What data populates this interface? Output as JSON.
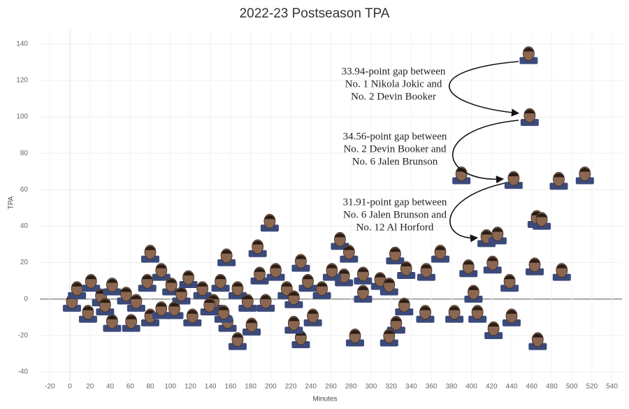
{
  "chart_data": {
    "type": "scatter",
    "title": "2022-23 Postseason TPA",
    "x_label": "Minutes",
    "y_label": "TPA",
    "color": "#8b6650",
    "grid": true,
    "xlim": [
      -30,
      550
    ],
    "ylim": [
      -45,
      148
    ],
    "xticks": [
      -20,
      0,
      20,
      40,
      60,
      80,
      100,
      120,
      140,
      160,
      180,
      200,
      220,
      240,
      260,
      280,
      300,
      320,
      340,
      360,
      380,
      400,
      420,
      440,
      460,
      480,
      500,
      520,
      540
    ],
    "yticks": [
      -40,
      -20,
      0,
      20,
      40,
      60,
      80,
      100,
      120,
      140
    ],
    "x": [
      457,
      458,
      442,
      415,
      390,
      487,
      513,
      465,
      470,
      426,
      463,
      490,
      421,
      438,
      397,
      402,
      369,
      355,
      324,
      335,
      292,
      309,
      318,
      269,
      278,
      273,
      199,
      80,
      156,
      187,
      230,
      466,
      440,
      422,
      406,
      383,
      354,
      333,
      325,
      318,
      284,
      242,
      230,
      223,
      167,
      181,
      157,
      61,
      42,
      80,
      2,
      7,
      21,
      31,
      42,
      56,
      66,
      77,
      91,
      101,
      111,
      118,
      132,
      143,
      150,
      167,
      177,
      189,
      205,
      216,
      223,
      237,
      251,
      261,
      292,
      104,
      122,
      139,
      18,
      35,
      91,
      153,
      195
    ],
    "values": [
      133.94,
      100,
      65.44,
      33.53,
      68,
      65,
      68,
      44,
      43,
      35,
      18,
      15,
      19,
      9,
      17,
      3,
      25,
      15,
      24,
      16,
      13,
      10,
      7,
      32,
      25,
      12,
      42,
      25,
      23,
      28,
      20,
      -23,
      -10,
      -17,
      -8,
      -8,
      -8,
      -4,
      -14,
      -21,
      -21,
      -10,
      -22,
      -14,
      -23,
      -15,
      -13,
      -13,
      -13,
      -10,
      -2,
      5,
      9,
      1,
      7,
      2,
      -2,
      9,
      15,
      7,
      2,
      11,
      5,
      -2,
      9,
      5,
      -2,
      13,
      15,
      5,
      0,
      9,
      5,
      15,
      3,
      -6,
      -10,
      -4,
      -8,
      -4,
      -6,
      -8,
      -2
    ],
    "annotations": [
      {
        "lines": [
          "33.94-point gap between",
          "No. 1 Nikola Jokic and",
          "No. 2 Devin Booker"
        ]
      },
      {
        "lines": [
          "34.56-point gap between",
          "No. 2 Devin Booker and",
          "No. 6 Jalen Brunson"
        ]
      },
      {
        "lines": [
          "31.91-point gap between",
          "No. 6 Jalen Brunson and",
          "No. 12 Al Horford"
        ]
      }
    ]
  }
}
